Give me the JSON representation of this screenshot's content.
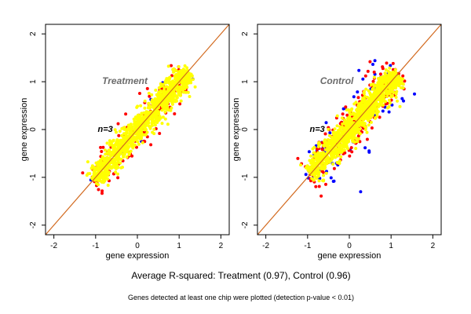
{
  "caption": "Average R-squared: Treatment (0.97), Control (0.96)",
  "footnote": "Genes detected at least one chip were plotted (detection p-value < 0.01)",
  "chart_data": [
    {
      "type": "scatter",
      "title": "Treatment",
      "n_label": "n=3",
      "xlabel": "gene expression",
      "ylabel": "gene expression",
      "xlim": [
        -2.2,
        2.2
      ],
      "ylim": [
        -2.2,
        2.2
      ],
      "xticks": [
        -2,
        -1,
        0,
        1,
        2
      ],
      "yticks": [
        -2,
        -1,
        0,
        1,
        2
      ],
      "reference_line": {
        "slope": 1,
        "intercept": 0,
        "color": "#d2691e"
      },
      "series": [
        {
          "color": "#0000ff",
          "range": [
            -1.1,
            1.2
          ],
          "spread": 0.14,
          "count": 18
        },
        {
          "color": "#ff0000",
          "range": [
            -1.1,
            1.2
          ],
          "spread": 0.12,
          "count": 160
        },
        {
          "color": "#ffff00",
          "range": [
            -1.05,
            1.2
          ],
          "spread": 0.085,
          "count": 1100
        }
      ],
      "grid": false
    },
    {
      "type": "scatter",
      "title": "Control",
      "n_label": "n=3",
      "xlabel": "gene expression",
      "ylabel": "gene expression",
      "xlim": [
        -2.2,
        2.2
      ],
      "ylim": [
        -2.2,
        2.2
      ],
      "xticks": [
        -2,
        -1,
        0,
        1,
        2
      ],
      "yticks": [
        -2,
        -1,
        0,
        1,
        2
      ],
      "reference_line": {
        "slope": 1,
        "intercept": 0,
        "color": "#d2691e"
      },
      "series": [
        {
          "color": "#0000ff",
          "range": [
            -1.0,
            1.2
          ],
          "spread": 0.22,
          "count": 80
        },
        {
          "color": "#ff0000",
          "range": [
            -1.0,
            1.2
          ],
          "spread": 0.14,
          "count": 240
        },
        {
          "color": "#ffff00",
          "range": [
            -0.95,
            1.15
          ],
          "spread": 0.09,
          "count": 1100
        }
      ],
      "grid": false
    }
  ]
}
